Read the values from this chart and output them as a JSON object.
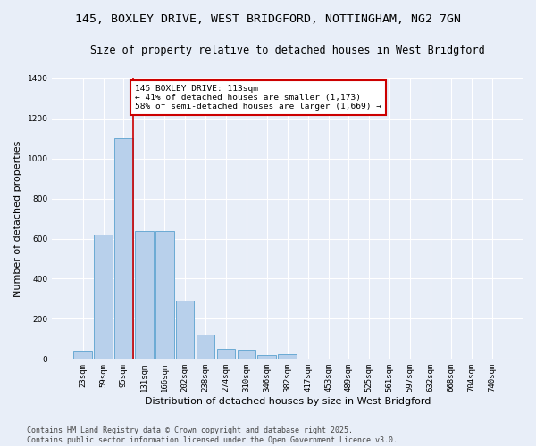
{
  "title_line1": "145, BOXLEY DRIVE, WEST BRIDGFORD, NOTTINGHAM, NG2 7GN",
  "title_line2": "Size of property relative to detached houses in West Bridgford",
  "xlabel": "Distribution of detached houses by size in West Bridgford",
  "ylabel": "Number of detached properties",
  "bar_color": "#b8d0eb",
  "bar_edge_color": "#6aaad4",
  "background_color": "#e8eef8",
  "grid_color": "#ffffff",
  "categories": [
    "23sqm",
    "59sqm",
    "95sqm",
    "131sqm",
    "166sqm",
    "202sqm",
    "238sqm",
    "274sqm",
    "310sqm",
    "346sqm",
    "382sqm",
    "417sqm",
    "453sqm",
    "489sqm",
    "525sqm",
    "561sqm",
    "597sqm",
    "632sqm",
    "668sqm",
    "704sqm",
    "740sqm"
  ],
  "values": [
    35,
    620,
    1100,
    640,
    640,
    290,
    120,
    50,
    45,
    20,
    25,
    0,
    0,
    0,
    0,
    0,
    0,
    0,
    0,
    0,
    0
  ],
  "ylim": [
    0,
    1400
  ],
  "yticks": [
    0,
    200,
    400,
    600,
    800,
    1000,
    1200,
    1400
  ],
  "annotation_title": "145 BOXLEY DRIVE: 113sqm",
  "annotation_line1": "← 41% of detached houses are smaller (1,173)",
  "annotation_line2": "58% of semi-detached houses are larger (1,669) →",
  "annotation_box_color": "#ffffff",
  "annotation_box_edge": "#cc0000",
  "red_line_color": "#cc0000",
  "footer_line1": "Contains HM Land Registry data © Crown copyright and database right 2025.",
  "footer_line2": "Contains public sector information licensed under the Open Government Licence v3.0.",
  "title_fontsize": 9.5,
  "subtitle_fontsize": 8.5,
  "tick_fontsize": 6.5,
  "ylabel_fontsize": 8,
  "xlabel_fontsize": 8,
  "annotation_fontsize": 6.8,
  "footer_fontsize": 6
}
